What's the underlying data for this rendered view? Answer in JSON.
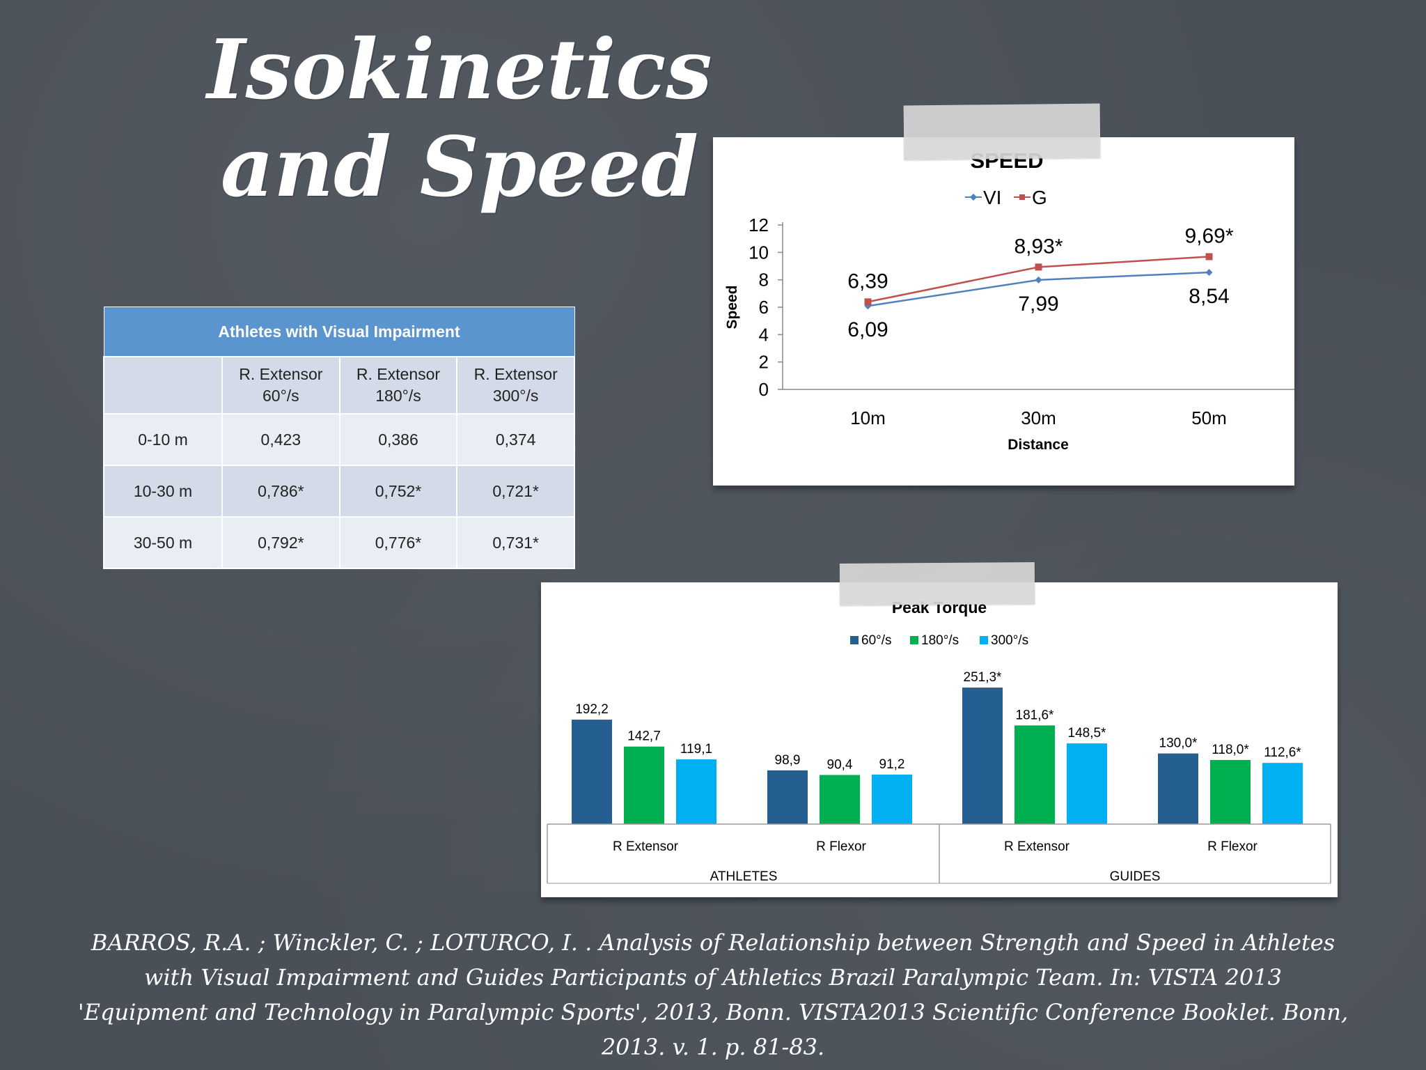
{
  "slide": {
    "title_line1": "Isokinetics",
    "title_line2": "and Speed",
    "reference": "BARROS, R.A. ; Winckler, C. ; LOTURCO, I. . Analysis of Relationship between Strength and Speed in Athletes with Visual Impairment and Guides Participants of Athletics Brazil Paralympic Team. In: VISTA 2013 'Equipment and Technology in Paralympic Sports', 2013, Bonn. VISTA2013 Scientific Conference Booklet. Bonn, 2013. v. 1. p. 81-83."
  },
  "table": {
    "caption": "Athletes with Visual Impairment",
    "headers": [
      {
        "l1": "R. Extensor",
        "l2": "60°/s"
      },
      {
        "l1": "R. Extensor",
        "l2": "180°/s"
      },
      {
        "l1": "R. Extensor",
        "l2": "300°/s"
      }
    ],
    "rows": [
      {
        "label": "0-10 m",
        "cells": [
          "0,423",
          "0,386",
          "0,374"
        ]
      },
      {
        "label": "10-30 m",
        "cells": [
          "0,786*",
          "0,752*",
          "0,721*"
        ]
      },
      {
        "label": "30-50 m",
        "cells": [
          "0,792*",
          "0,776*",
          "0,731*"
        ]
      }
    ]
  },
  "chart_data": [
    {
      "type": "line",
      "title": "SPEED",
      "xlabel": "Distance",
      "ylabel": "Speed",
      "categories": [
        "10m",
        "30m",
        "50m"
      ],
      "ylim": [
        0,
        12
      ],
      "yticks": [
        0,
        2,
        4,
        6,
        8,
        10,
        12
      ],
      "legend_position": "top",
      "series": [
        {
          "name": "VI",
          "color": "#4f81bd",
          "values": [
            6.09,
            7.99,
            8.54
          ],
          "labels": [
            "6,09",
            "7,99",
            "8,54"
          ]
        },
        {
          "name": "G",
          "color": "#c0504d",
          "values": [
            6.39,
            8.93,
            9.69
          ],
          "labels": [
            "6,39",
            "8,93*",
            "9,69*"
          ]
        }
      ]
    },
    {
      "type": "bar",
      "title": "Peak Torque",
      "legend_position": "top",
      "groups": [
        "ATHLETES",
        "GUIDES"
      ],
      "categories": [
        "R Extensor",
        "R Flexor",
        "R Extensor",
        "R Flexor"
      ],
      "category_group": [
        0,
        0,
        1,
        1
      ],
      "series": [
        {
          "name": "60°/s",
          "color": "#255e91",
          "values": [
            192.2,
            98.9,
            251.3,
            130.0
          ],
          "labels": [
            "192,2",
            "98,9",
            "251,3*",
            "130,0*"
          ]
        },
        {
          "name": "180°/s",
          "color": "#00b050",
          "values": [
            142.7,
            90.4,
            181.6,
            118.0
          ],
          "labels": [
            "142,7",
            "90,4",
            "181,6*",
            "118,0*"
          ]
        },
        {
          "name": "300°/s",
          "color": "#00b0f0",
          "values": [
            119.1,
            91.2,
            148.5,
            112.6
          ],
          "labels": [
            "119,1",
            "91,2",
            "148,5*",
            "112,6*"
          ]
        }
      ]
    }
  ]
}
